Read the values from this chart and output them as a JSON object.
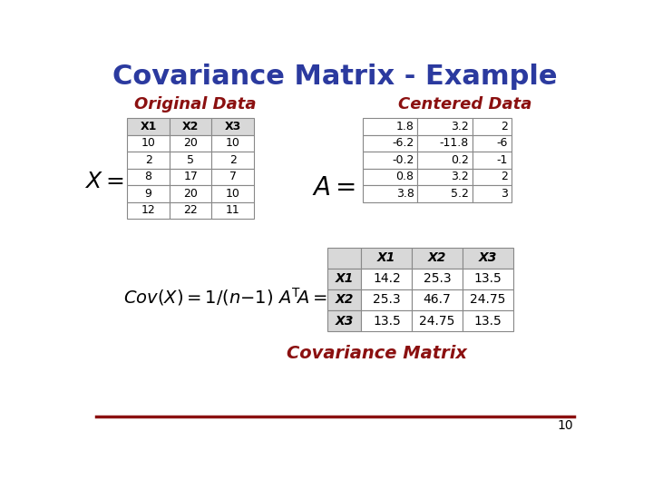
{
  "title": "Covariance Matrix - Example",
  "title_color": "#2B3A9F",
  "title_fontsize": 22,
  "original_data_label": "Original Data",
  "centered_data_label": "Centered Data",
  "cov_matrix_label": "Covariance Matrix",
  "label_color": "#8B1010",
  "X_headers": [
    "X1",
    "X2",
    "X3"
  ],
  "X_data": [
    [
      "10",
      "20",
      "10"
    ],
    [
      "2",
      "5",
      "2"
    ],
    [
      "8",
      "17",
      "7"
    ],
    [
      "9",
      "20",
      "10"
    ],
    [
      "12",
      "22",
      "11"
    ]
  ],
  "A_data": [
    [
      "1.8",
      "3.2",
      "2"
    ],
    [
      "-6.2",
      "-11.8",
      "-6"
    ],
    [
      "-0.2",
      "0.2",
      "-1"
    ],
    [
      "0.8",
      "3.2",
      "2"
    ],
    [
      "3.8",
      "5.2",
      "3"
    ]
  ],
  "cov_col_headers": [
    "X1",
    "X2",
    "X3"
  ],
  "cov_row_headers": [
    "X1",
    "X2",
    "X3"
  ],
  "cov_data": [
    [
      "14.2",
      "25.3",
      "13.5"
    ],
    [
      "25.3",
      "46.7",
      "24.75"
    ],
    [
      "13.5",
      "24.75",
      "13.5"
    ]
  ],
  "page_number": "10",
  "header_bg": "#D8D8D8",
  "cell_bg": "#FFFFFF",
  "grid_color": "#888888",
  "bottom_line_color": "#8B1010"
}
